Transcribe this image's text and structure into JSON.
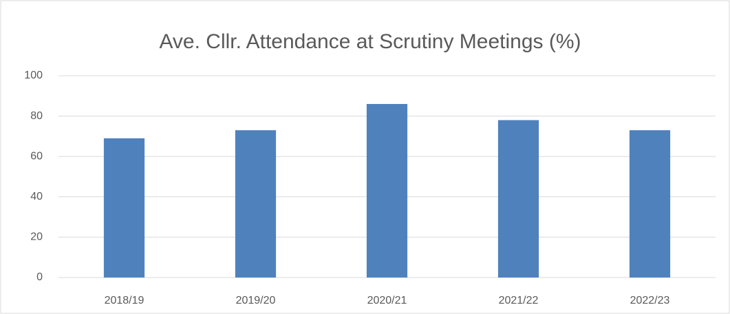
{
  "chart_data": {
    "type": "bar",
    "title": "Ave. Cllr. Attendance at Scrutiny Meetings (%)",
    "categories": [
      "2018/19",
      "2019/20",
      "2020/21",
      "2021/22",
      "2022/23"
    ],
    "values": [
      69,
      73,
      86,
      78,
      73
    ],
    "color": "#4f81bd",
    "ylim": [
      0,
      100
    ],
    "yticks": [
      0,
      20,
      40,
      60,
      80,
      100
    ],
    "grid": true
  }
}
